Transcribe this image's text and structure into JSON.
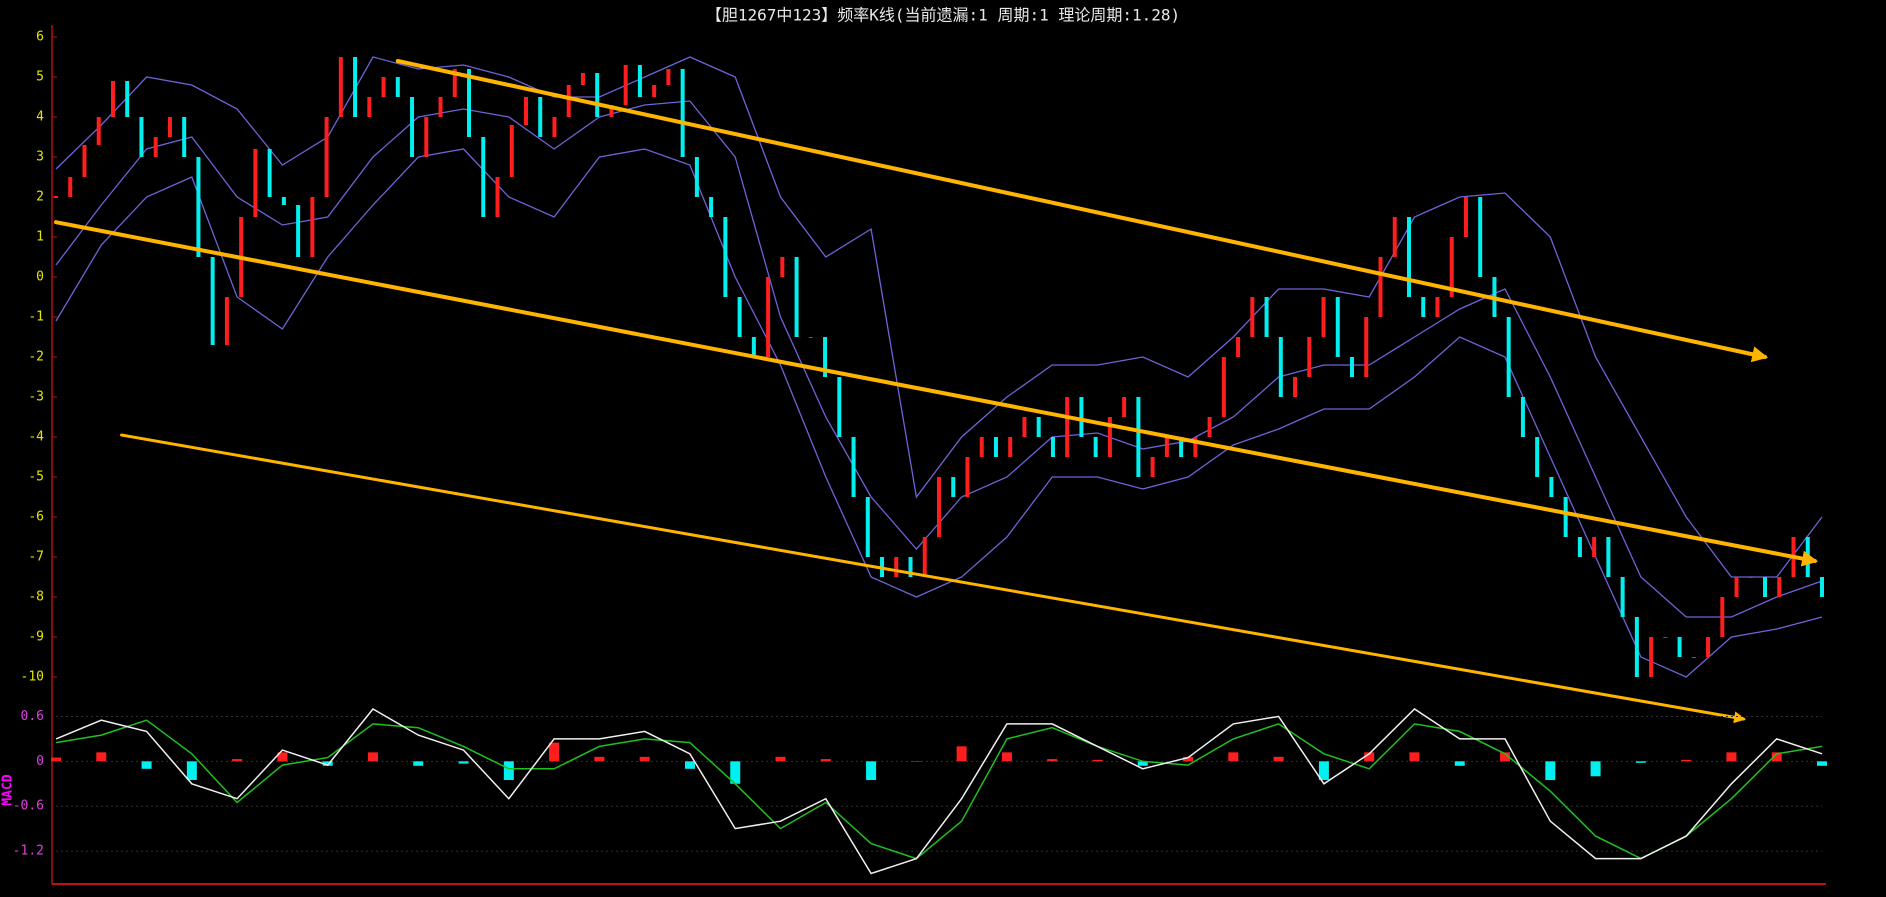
{
  "chart_data": [
    {
      "type": "kline",
      "title": "【胆1267中123】频率K线(当前遗漏:1 周期:1 理论周期:1.28)",
      "values": [
        2,
        2.5,
        3.3,
        4,
        4.9,
        4,
        3,
        3.5,
        4,
        3,
        0.5,
        -1.7,
        -0.5,
        1.5,
        3.2,
        2,
        1.8,
        0.5,
        2,
        4,
        5.5,
        4,
        4.5,
        5,
        4.5,
        3,
        4,
        4.5,
        5.2,
        3.5,
        1.5,
        2.5,
        3.8,
        4.5,
        3.5,
        4,
        4.8,
        5.1,
        4,
        4.3,
        5.3,
        4.5,
        4.8,
        5.2,
        3,
        2,
        1.5,
        -0.5,
        -1.5,
        -2,
        0,
        0.5,
        -1.5,
        -1.5,
        -2.5,
        -4,
        -5.5,
        -7,
        -7.5,
        -7,
        -7.5,
        -6.5,
        -5,
        -5.5,
        -4.5,
        -4,
        -4.5,
        -4,
        -3.5,
        -4,
        -4.5,
        -3,
        -4,
        -4.5,
        -3.5,
        -3,
        -5,
        -4.5,
        -4,
        -4.5,
        -4,
        -3.5,
        -2,
        -1.5,
        -0.5,
        -1.5,
        -3,
        -2.5,
        -1.5,
        -0.5,
        -2,
        -2.5,
        -1,
        0.5,
        1.5,
        -0.5,
        -1,
        -0.5,
        1,
        2,
        0,
        -1,
        -3,
        -4,
        -5,
        -5.5,
        -6.5,
        -7,
        -6.5,
        -7.5,
        -8.5,
        -10,
        -9,
        -9,
        -9.5,
        -9.5,
        -9,
        -8,
        -7.5,
        -7.5,
        -8,
        -7.5,
        -6.5,
        -7.5,
        -8
      ],
      "up_color": "#ff1e1e",
      "down_color": "#00f0f0",
      "bands": {
        "upper": [
          2.7,
          3.8,
          5,
          4.8,
          4.2,
          2.8,
          3.5,
          5.5,
          5.2,
          5.3,
          5,
          4.5,
          4.5,
          5,
          5.5,
          5,
          2,
          0.5,
          1.2,
          -5.5,
          -4,
          -3,
          -2.2,
          -2.2,
          -2,
          -2.5,
          -1.5,
          -0.3,
          -0.3,
          -0.5,
          1.5,
          2,
          2.1,
          1,
          -2,
          -4,
          -6,
          -7.5,
          -7.5,
          -6
        ],
        "mid": [
          0.3,
          1.8,
          3.2,
          3.5,
          2,
          1.3,
          1.5,
          3,
          4,
          4.2,
          4,
          3.2,
          4,
          4.3,
          4.4,
          3,
          -1,
          -3.5,
          -5.5,
          -6.8,
          -5.5,
          -5,
          -4,
          -3.9,
          -4.3,
          -4.1,
          -3.5,
          -2.5,
          -2.2,
          -2.2,
          -1.5,
          -0.8,
          -0.3,
          -2.5,
          -5,
          -7.5,
          -8.5,
          -8.5,
          -8,
          -7.6
        ],
        "lower": [
          -1.1,
          0.8,
          2,
          2.5,
          -0.5,
          -1.3,
          0.5,
          1.8,
          3,
          3.2,
          2,
          1.5,
          3,
          3.2,
          2.8,
          0,
          -2.2,
          -5,
          -7.5,
          -8,
          -7.5,
          -6.5,
          -5,
          -5,
          -5.3,
          -5,
          -4.2,
          -3.8,
          -3.3,
          -3.3,
          -2.5,
          -1.5,
          -2,
          -4.5,
          -7,
          -9.5,
          -10,
          -9,
          -8.8,
          -8.5
        ]
      },
      "band_color": "#6c64d8",
      "trend_lines": [
        {
          "x": [
            24,
            120
          ],
          "y": [
            5.4,
            -2.0
          ]
        },
        {
          "x": [
            0,
            123.5
          ],
          "y": [
            1.37,
            -7.1
          ]
        },
        {
          "x": [
            4.6,
            118.5
          ],
          "y": [
            -3.95,
            -11.05
          ]
        }
      ],
      "trend_color": "#ffb400",
      "ylim": [
        -10.4,
        6.3
      ],
      "yticks": [
        -10,
        -9,
        -8,
        -7,
        -6,
        -5,
        -4,
        -3,
        -2,
        -1,
        0,
        1,
        2,
        3,
        4,
        5,
        6
      ]
    },
    {
      "type": "macd",
      "ylabel": "MACD",
      "dif": [
        0.3,
        0.55,
        0.4,
        -0.3,
        -0.5,
        0.15,
        -0.05,
        0.7,
        0.35,
        0.15,
        -0.5,
        0.3,
        0.3,
        0.4,
        0.1,
        -0.9,
        -0.8,
        -0.5,
        -1.5,
        -1.3,
        -0.5,
        0.5,
        0.5,
        0.2,
        -0.1,
        0.05,
        0.5,
        0.6,
        -0.3,
        0.1,
        0.7,
        0.3,
        0.3,
        -0.8,
        -1.3,
        -1.3,
        -1.0,
        -0.3,
        0.3,
        0.1
      ],
      "dea": [
        0.25,
        0.35,
        0.55,
        0.1,
        -0.55,
        -0.05,
        0.05,
        0.5,
        0.45,
        0.2,
        -0.1,
        -0.1,
        0.2,
        0.3,
        0.25,
        -0.3,
        -0.9,
        -0.55,
        -1.1,
        -1.3,
        -0.8,
        0.3,
        0.45,
        0.2,
        0.0,
        -0.05,
        0.3,
        0.5,
        0.1,
        -0.1,
        0.5,
        0.4,
        0.1,
        -0.4,
        -1.0,
        -1.3,
        -1.0,
        -0.5,
        0.1,
        0.2
      ],
      "hist": [
        0.05,
        0.12,
        -0.1,
        -0.25,
        0.03,
        0.12,
        -0.06,
        0.12,
        -0.06,
        -0.03,
        -0.25,
        0.25,
        0.06,
        0.06,
        -0.1,
        -0.3,
        0.06,
        0.03,
        -0.25,
        0,
        0.2,
        0.12,
        0.03,
        0.02,
        -0.06,
        0.06,
        0.12,
        0.06,
        -0.25,
        0.12,
        0.12,
        -0.06,
        0.12,
        -0.25,
        -0.2,
        -0.02,
        0.02,
        0.12,
        0.12,
        -0.06
      ],
      "dif_color": "#f0f0f0",
      "dea_color": "#20c020",
      "up_color": "#ff1e1e",
      "down_color": "#00f0f0",
      "ylim": [
        -1.6,
        0.9
      ],
      "yticks": [
        -1.2,
        -0.6,
        0,
        0.6
      ],
      "grid": true
    }
  ]
}
